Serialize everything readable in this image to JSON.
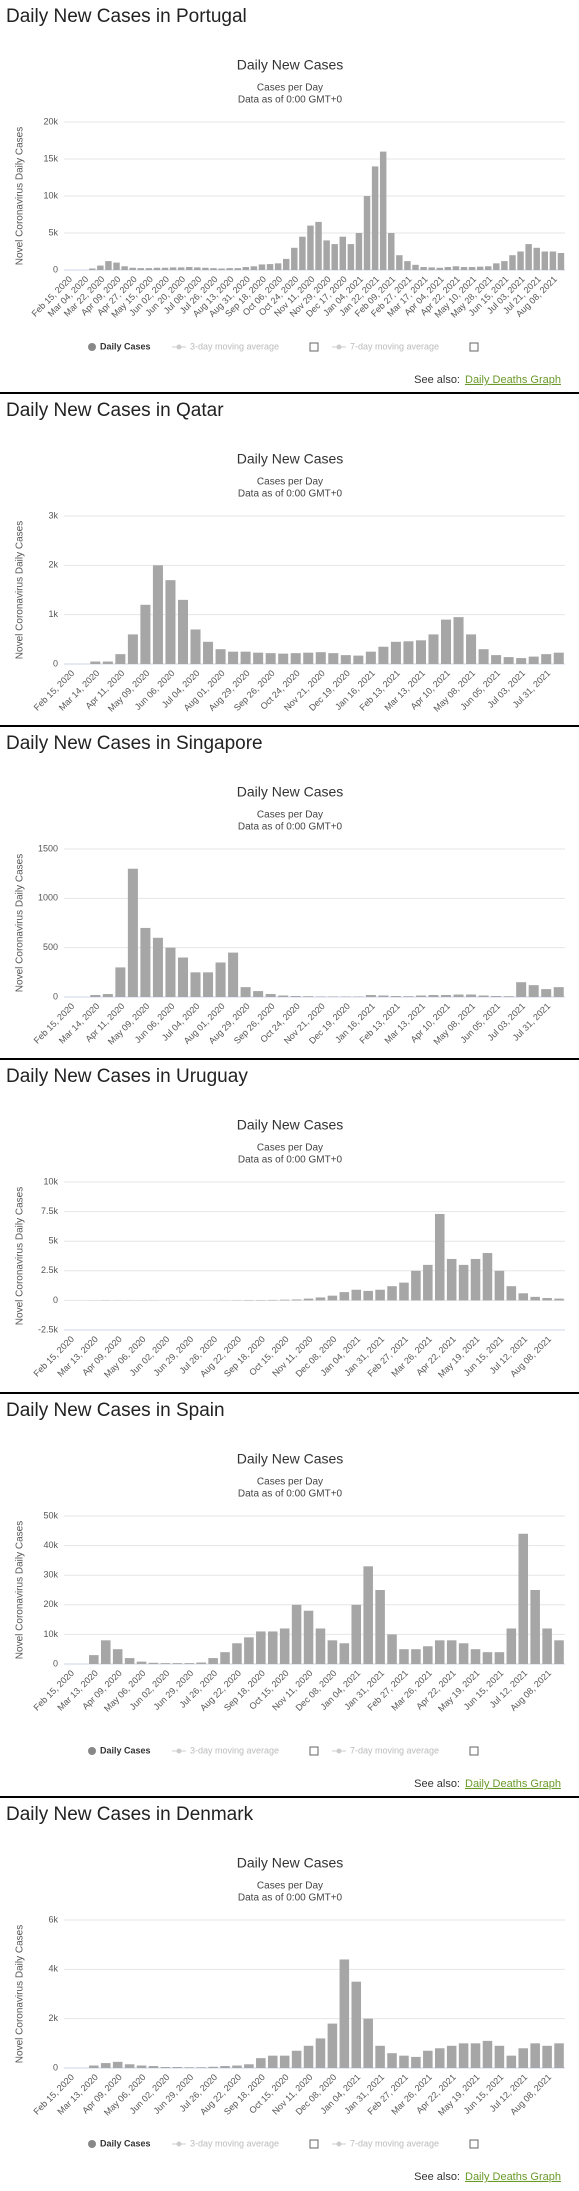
{
  "chart_data": [
    {
      "type": "bar",
      "heading": "Daily New Cases in Portugal",
      "title": "Daily New Cases",
      "subtitle": "Cases per Day",
      "note": "Data as of 0:00 GMT+0",
      "y_label": "Novel Coronavirus Daily Cases",
      "categories": [
        "Feb 15, 2020",
        null,
        "Mar 04, 2020",
        null,
        "Mar 22, 2020",
        null,
        "Apr 09, 2020",
        null,
        "Apr 27, 2020",
        null,
        "May 15, 2020",
        null,
        "Jun 02, 2020",
        null,
        "Jun 20, 2020",
        null,
        "Jul 08, 2020",
        null,
        "Jul 26, 2020",
        null,
        "Aug 13, 2020",
        null,
        "Aug 31, 2020",
        null,
        "Sep 18, 2020",
        null,
        "Oct 06, 2020",
        null,
        "Oct 24, 2020",
        null,
        "Nov 11, 2020",
        null,
        "Nov 29, 2020",
        null,
        "Dec 17, 2020",
        null,
        "Jan 04, 2021",
        null,
        "Jan 22, 2021",
        null,
        "Feb 09, 2021",
        null,
        "Feb 27, 2021",
        null,
        "Mar 17, 2021",
        null,
        "Apr 04, 2021",
        null,
        "Apr 22, 2021",
        null,
        "May 10, 2021",
        null,
        "May 28, 2021",
        null,
        "Jun 15, 2021",
        null,
        "Jul 03, 2021",
        null,
        "Jul 21, 2021",
        null,
        "Aug 08, 2021",
        null
      ],
      "series": [
        {
          "name": "Daily Cases",
          "color": "#a6a6a6",
          "values": [
            0,
            0,
            0,
            200,
            600,
            1200,
            1000,
            500,
            300,
            250,
            250,
            300,
            300,
            350,
            350,
            400,
            350,
            300,
            250,
            200,
            250,
            250,
            400,
            500,
            750,
            800,
            900,
            1500,
            3000,
            4500,
            6000,
            6500,
            4000,
            3500,
            4500,
            3500,
            5000,
            10000,
            14000,
            16000,
            5000,
            2000,
            1200,
            700,
            400,
            350,
            300,
            400,
            500,
            400,
            400,
            450,
            500,
            900,
            1200,
            2000,
            2500,
            3500,
            3000,
            2500,
            2500,
            2300
          ]
        }
      ],
      "ylim": [
        0,
        20000
      ],
      "yticks": [
        0,
        {
          "value": 5000,
          "label": "5k"
        },
        {
          "value": 10000,
          "label": "10k"
        },
        {
          "value": 15000,
          "label": "15k"
        },
        {
          "value": 20000,
          "label": "20k"
        }
      ],
      "grid": true,
      "moving_averages": [
        "3-day moving average",
        "7-day moving average"
      ],
      "see_also": "See also:",
      "link": "Daily Deaths Graph"
    },
    {
      "type": "bar",
      "heading": "Daily New Cases in Qatar",
      "title": "Daily New Cases",
      "subtitle": "Cases per Day",
      "note": "Data as of 0:00 GMT+0",
      "y_label": "Novel Coronavirus Daily Cases",
      "categories": [
        "Feb 15, 2020",
        null,
        "Mar 14, 2020",
        null,
        "Apr 11, 2020",
        null,
        "May 09, 2020",
        null,
        "Jun 06, 2020",
        null,
        "Jul 04, 2020",
        null,
        "Aug 01, 2020",
        null,
        "Aug 29, 2020",
        null,
        "Sep 26, 2020",
        null,
        "Oct 24, 2020",
        null,
        "Nov 21, 2020",
        null,
        "Dec 19, 2020",
        null,
        "Jan 16, 2021",
        null,
        "Feb 13, 2021",
        null,
        "Mar 13, 2021",
        null,
        "Apr 10, 2021",
        null,
        "May 08, 2021",
        null,
        "Jun 05, 2021",
        null,
        "Jul 03, 2021",
        null,
        "Jul 31, 2021",
        null
      ],
      "series": [
        {
          "name": "Daily Cases",
          "color": "#a6a6a6",
          "values": [
            0,
            0,
            50,
            50,
            200,
            600,
            1200,
            2000,
            1700,
            1300,
            700,
            450,
            300,
            250,
            250,
            230,
            220,
            210,
            220,
            230,
            240,
            220,
            180,
            170,
            250,
            350,
            450,
            460,
            480,
            600,
            900,
            950,
            600,
            300,
            180,
            140,
            120,
            150,
            200,
            230
          ]
        }
      ],
      "ylim": [
        0,
        3000
      ],
      "yticks": [
        0,
        {
          "value": 1000,
          "label": "1k"
        },
        {
          "value": 2000,
          "label": "2k"
        },
        {
          "value": 3000,
          "label": "3k"
        }
      ],
      "grid": true
    },
    {
      "type": "bar",
      "heading": "Daily New Cases in Singapore",
      "title": "Daily New Cases",
      "subtitle": "Cases per Day",
      "note": "Data as of 0:00 GMT+0",
      "y_label": "Novel Coronavirus Daily Cases",
      "categories": [
        "Feb 15, 2020",
        null,
        "Mar 14, 2020",
        null,
        "Apr 11, 2020",
        null,
        "May 09, 2020",
        null,
        "Jun 06, 2020",
        null,
        "Jul 04, 2020",
        null,
        "Aug 01, 2020",
        null,
        "Aug 29, 2020",
        null,
        "Sep 26, 2020",
        null,
        "Oct 24, 2020",
        null,
        "Nov 21, 2020",
        null,
        "Dec 19, 2020",
        null,
        "Jan 16, 2021",
        null,
        "Feb 13, 2021",
        null,
        "Mar 13, 2021",
        null,
        "Apr 10, 2021",
        null,
        "May 08, 2021",
        null,
        "Jun 05, 2021",
        null,
        "Jul 03, 2021",
        null,
        "Jul 31, 2021",
        null
      ],
      "series": [
        {
          "name": "Daily Cases",
          "color": "#a6a6a6",
          "values": [
            0,
            0,
            20,
            30,
            300,
            1300,
            700,
            600,
            500,
            400,
            250,
            250,
            350,
            450,
            100,
            60,
            30,
            15,
            10,
            8,
            5,
            5,
            5,
            5,
            20,
            15,
            10,
            8,
            15,
            20,
            20,
            25,
            25,
            15,
            10,
            8,
            150,
            120,
            80,
            100
          ]
        }
      ],
      "ylim": [
        0,
        1500
      ],
      "yticks": [
        0,
        500,
        1000,
        1500
      ],
      "grid": true
    },
    {
      "type": "bar",
      "heading": "Daily New Cases in Uruguay",
      "title": "Daily New Cases",
      "subtitle": "Cases per Day",
      "note": "Data as of 0:00 GMT+0",
      "y_label": "Novel Coronavirus Daily Cases",
      "categories": [
        "Feb 15, 2020",
        null,
        "Mar 13, 2020",
        null,
        "Apr 09, 2020",
        null,
        "May 06, 2020",
        null,
        "Jun 02, 2020",
        null,
        "Jun 29, 2020",
        null,
        "Jul 26, 2020",
        null,
        "Aug 22, 2020",
        null,
        "Sep 18, 2020",
        null,
        "Oct 15, 2020",
        null,
        "Nov 11, 2020",
        null,
        "Dec 08, 2020",
        null,
        "Jan 04, 2021",
        null,
        "Jan 31, 2021",
        null,
        "Feb 27, 2021",
        null,
        "Mar 26, 2021",
        null,
        "Apr 22, 2021",
        null,
        "May 19, 2021",
        null,
        "Jun 15, 2021",
        null,
        "Jul 12, 2021",
        null,
        "Aug 08, 2021",
        null
      ],
      "series": [
        {
          "name": "Daily Cases",
          "color": "#a6a6a6",
          "values": [
            0,
            0,
            10,
            20,
            15,
            10,
            10,
            10,
            5,
            5,
            5,
            5,
            5,
            10,
            20,
            30,
            30,
            40,
            60,
            80,
            150,
            250,
            400,
            700,
            900,
            800,
            900,
            1200,
            1500,
            2500,
            3000,
            7300,
            3500,
            3000,
            3500,
            4000,
            2500,
            1200,
            600,
            300,
            200,
            150
          ]
        }
      ],
      "ylim": [
        -2500,
        10000
      ],
      "yticks": [
        {
          "value": -2500,
          "label": "-2.5k"
        },
        0,
        {
          "value": 2500,
          "label": "2.5k"
        },
        {
          "value": 5000,
          "label": "5k"
        },
        {
          "value": 7500,
          "label": "7.5k"
        },
        {
          "value": 10000,
          "label": "10k"
        }
      ],
      "grid": true
    },
    {
      "type": "bar",
      "heading": "Daily New Cases in Spain",
      "title": "Daily New Cases",
      "subtitle": "Cases per Day",
      "note": "Data as of 0:00 GMT+0",
      "y_label": "Novel Coronavirus Daily Cases",
      "categories": [
        "Feb 15, 2020",
        null,
        "Mar 13, 2020",
        null,
        "Apr 09, 2020",
        null,
        "May 06, 2020",
        null,
        "Jun 02, 2020",
        null,
        "Jun 29, 2020",
        null,
        "Jul 26, 2020",
        null,
        "Aug 22, 2020",
        null,
        "Sep 18, 2020",
        null,
        "Oct 15, 2020",
        null,
        "Nov 11, 2020",
        null,
        "Dec 08, 2020",
        null,
        "Jan 04, 2021",
        null,
        "Jan 31, 2021",
        null,
        "Feb 27, 2021",
        null,
        "Mar 26, 2021",
        null,
        "Apr 22, 2021",
        null,
        "May 19, 2021",
        null,
        "Jun 15, 2021",
        null,
        "Jul 12, 2021",
        null,
        "Aug 08, 2021",
        null
      ],
      "series": [
        {
          "name": "Daily Cases",
          "color": "#a6a6a6",
          "values": [
            0,
            0,
            3000,
            8000,
            5000,
            2000,
            800,
            400,
            300,
            300,
            300,
            500,
            2000,
            4000,
            7000,
            9000,
            11000,
            11000,
            12000,
            20000,
            18000,
            12000,
            8000,
            7000,
            20000,
            33000,
            25000,
            10000,
            5000,
            5000,
            6000,
            8000,
            8000,
            7000,
            5000,
            4000,
            4000,
            12000,
            44000,
            25000,
            12000,
            8000
          ]
        }
      ],
      "ylim": [
        0,
        50000
      ],
      "yticks": [
        0,
        {
          "value": 10000,
          "label": "10k"
        },
        {
          "value": 20000,
          "label": "20k"
        },
        {
          "value": 30000,
          "label": "30k"
        },
        {
          "value": 40000,
          "label": "40k"
        },
        {
          "value": 50000,
          "label": "50k"
        }
      ],
      "grid": true,
      "moving_averages": [
        "3-day moving average",
        "7-day moving average"
      ],
      "see_also": "See also:",
      "link": "Daily Deaths Graph"
    },
    {
      "type": "bar",
      "heading": "Daily New Cases in Denmark",
      "title": "Daily New Cases",
      "subtitle": "Cases per Day",
      "note": "Data as of 0:00 GMT+0",
      "y_label": "Novel Coronavirus Daily Cases",
      "categories": [
        "Feb 15, 2020",
        null,
        "Mar 13, 2020",
        null,
        "Apr 09, 2020",
        null,
        "May 06, 2020",
        null,
        "Jun 02, 2020",
        null,
        "Jun 29, 2020",
        null,
        "Jul 26, 2020",
        null,
        "Aug 22, 2020",
        null,
        "Sep 18, 2020",
        null,
        "Oct 15, 2020",
        null,
        "Nov 11, 2020",
        null,
        "Dec 08, 2020",
        null,
        "Jan 04, 2021",
        null,
        "Jan 31, 2021",
        null,
        "Feb 27, 2021",
        null,
        "Mar 26, 2021",
        null,
        "Apr 22, 2021",
        null,
        "May 19, 2021",
        null,
        "Jun 15, 2021",
        null,
        "Jul 12, 2021",
        null,
        "Aug 08, 2021",
        null
      ],
      "series": [
        {
          "name": "Daily Cases",
          "color": "#a6a6a6",
          "values": [
            0,
            0,
            100,
            200,
            250,
            150,
            100,
            80,
            40,
            40,
            30,
            30,
            50,
            80,
            100,
            150,
            400,
            500,
            500,
            700,
            900,
            1200,
            1800,
            4400,
            3500,
            2000,
            900,
            600,
            500,
            450,
            700,
            800,
            900,
            1000,
            1000,
            1100,
            900,
            500,
            800,
            1000,
            900,
            1000
          ]
        }
      ],
      "ylim": [
        0,
        6000
      ],
      "yticks": [
        0,
        {
          "value": 2000,
          "label": "2k"
        },
        {
          "value": 4000,
          "label": "4k"
        },
        {
          "value": 6000,
          "label": "6k"
        }
      ],
      "grid": true,
      "moving_averages": [
        "3-day moving average",
        "7-day moving average"
      ],
      "see_also": "See also:",
      "link": "Daily Deaths Graph"
    }
  ]
}
